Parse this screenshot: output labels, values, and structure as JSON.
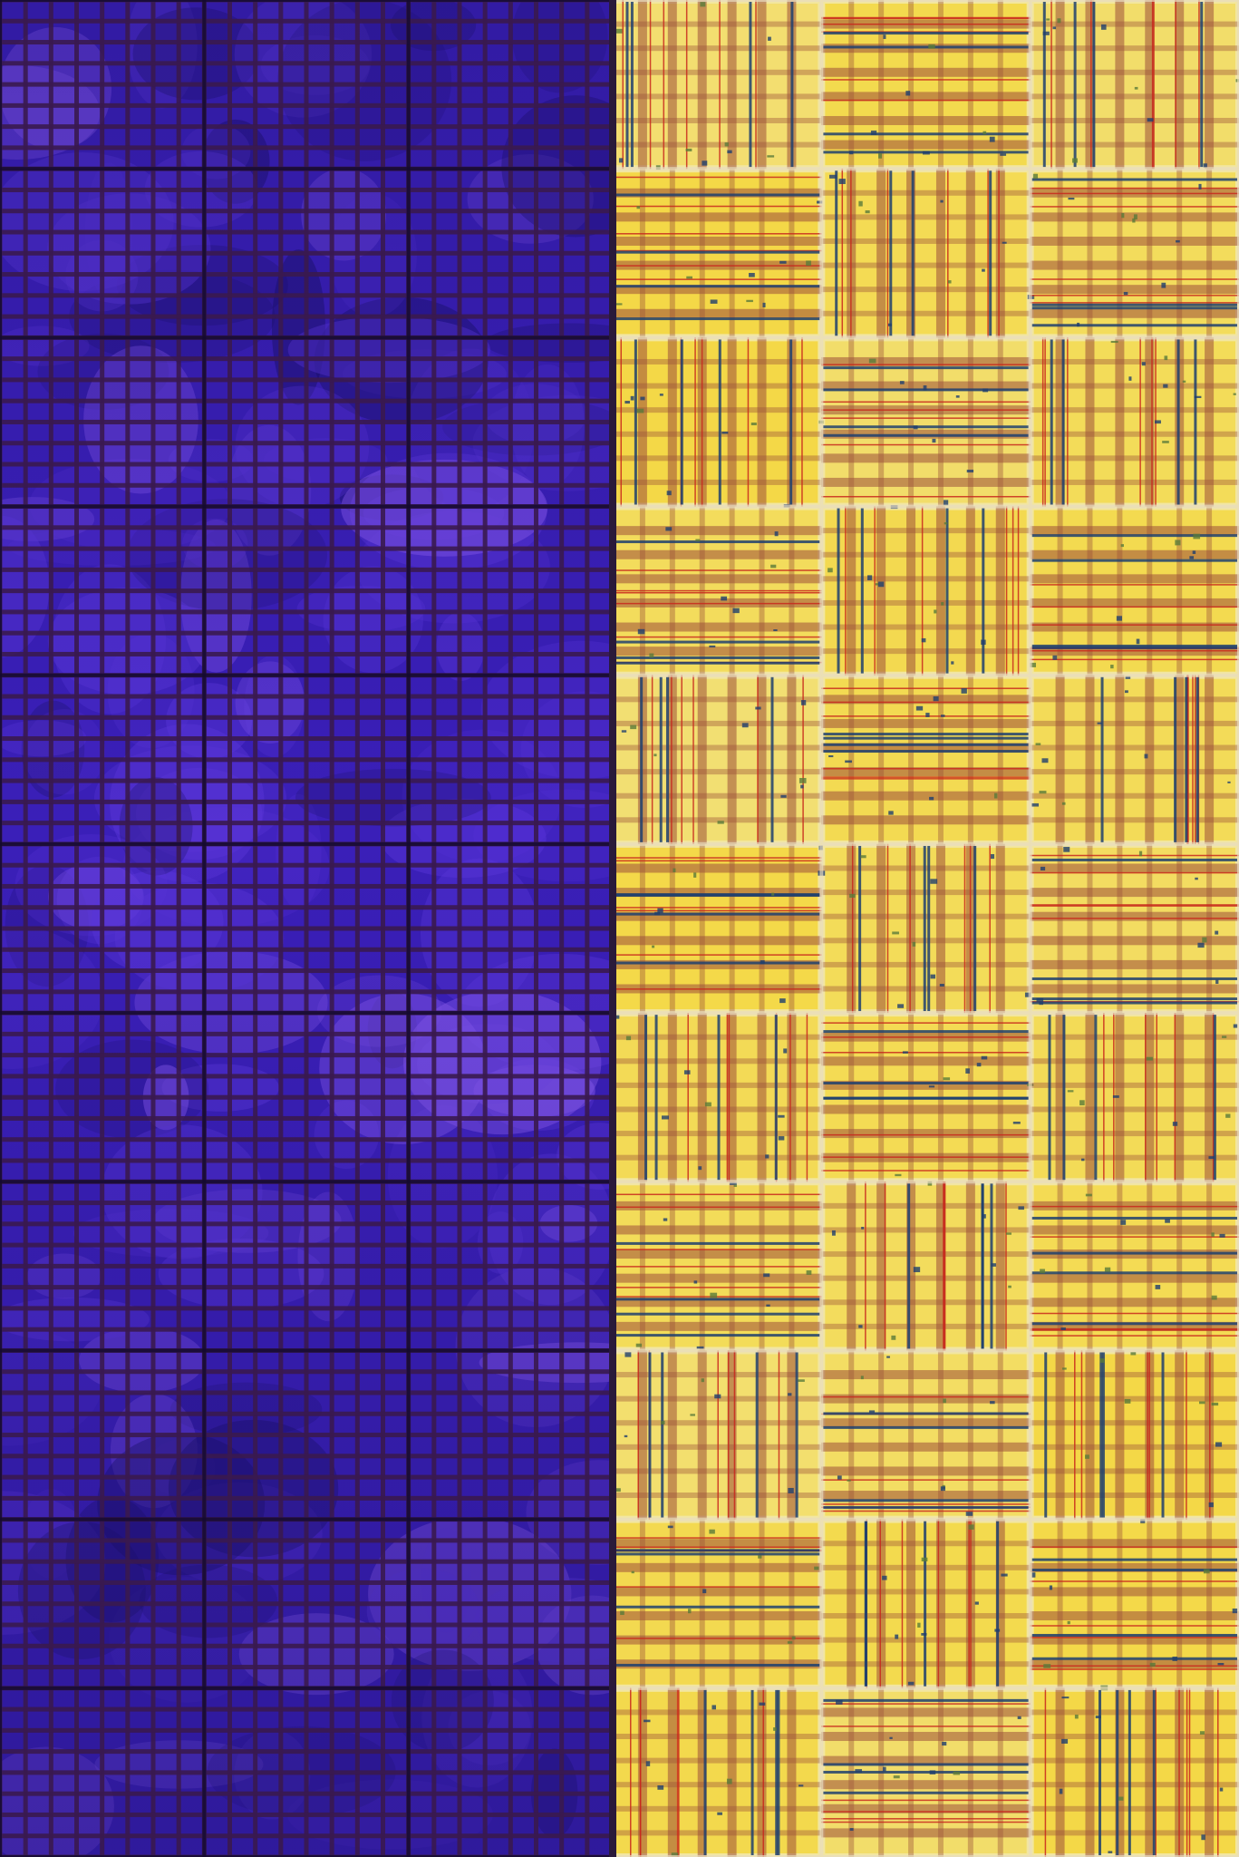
{
  "artwork": {
    "left_panel": {
      "base_color": "#3a1fb8",
      "mid_color": "#5a36d9",
      "light_color": "#8a5cf0",
      "dark_color": "#1a0f66",
      "grid_color": "#3a1a4f",
      "cell_columns": 3,
      "cell_rows": 11,
      "subgrid": 8
    },
    "right_panel": {
      "base_color": "#f2e6a0",
      "accent_yellow": "#f4d21e",
      "brown_line": "#9c4f3a",
      "red_line": "#c8281c",
      "blue_line": "#1f3f6e",
      "green_line": "#5a7a3a",
      "cell_columns": 3,
      "cell_rows": 11,
      "subgrid": 7
    },
    "divider_color": "#2a1a3a"
  }
}
